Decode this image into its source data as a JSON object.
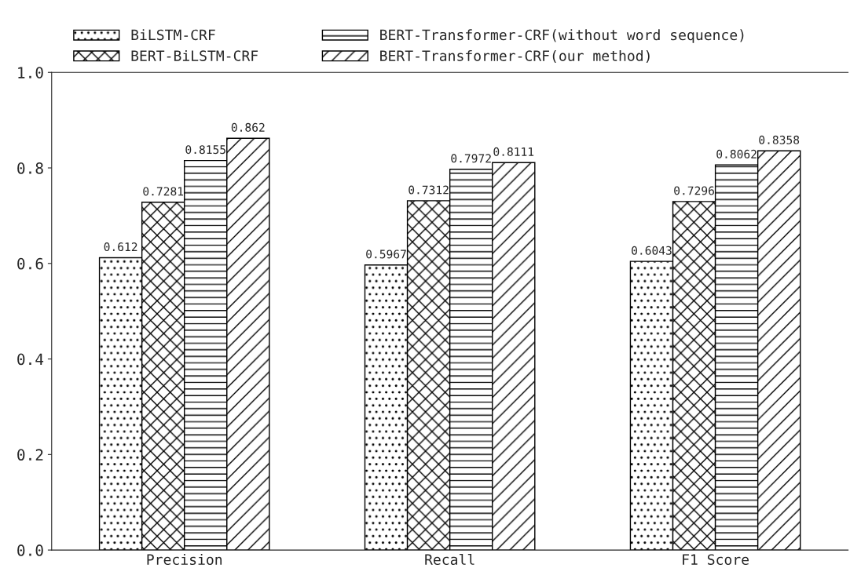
{
  "chart_data": {
    "type": "bar",
    "categories": [
      "Precision",
      "Recall",
      "F1 Score"
    ],
    "series": [
      {
        "name": "BiLSTM-CRF",
        "color": "#000000",
        "values": [
          0.612,
          0.5967,
          0.6043
        ]
      },
      {
        "name": "BERT-BiLSTM-CRF",
        "color": "#000000",
        "values": [
          0.7281,
          0.7312,
          0.7296
        ]
      },
      {
        "name": "BERT-Transformer-CRF(without word sequence)",
        "color": "#000000",
        "values": [
          0.8155,
          0.7972,
          0.8062
        ]
      },
      {
        "name": "BERT-Transformer-CRF(our method)",
        "color": "#000000",
        "values": [
          0.862,
          0.8111,
          0.8358
        ]
      }
    ],
    "ylim": [
      0,
      1
    ],
    "yticks": [
      {
        "value": 0,
        "label": "0.0"
      },
      {
        "value": 0.2,
        "label": "0.2"
      },
      {
        "value": 0.4,
        "label": "0.4"
      },
      {
        "value": 0.6,
        "label": "0.6"
      },
      {
        "value": 0.8,
        "label": "0.8"
      },
      {
        "value": 1,
        "label": "1.0"
      }
    ],
    "data_labels": true,
    "legend": "top",
    "grid": false
  }
}
